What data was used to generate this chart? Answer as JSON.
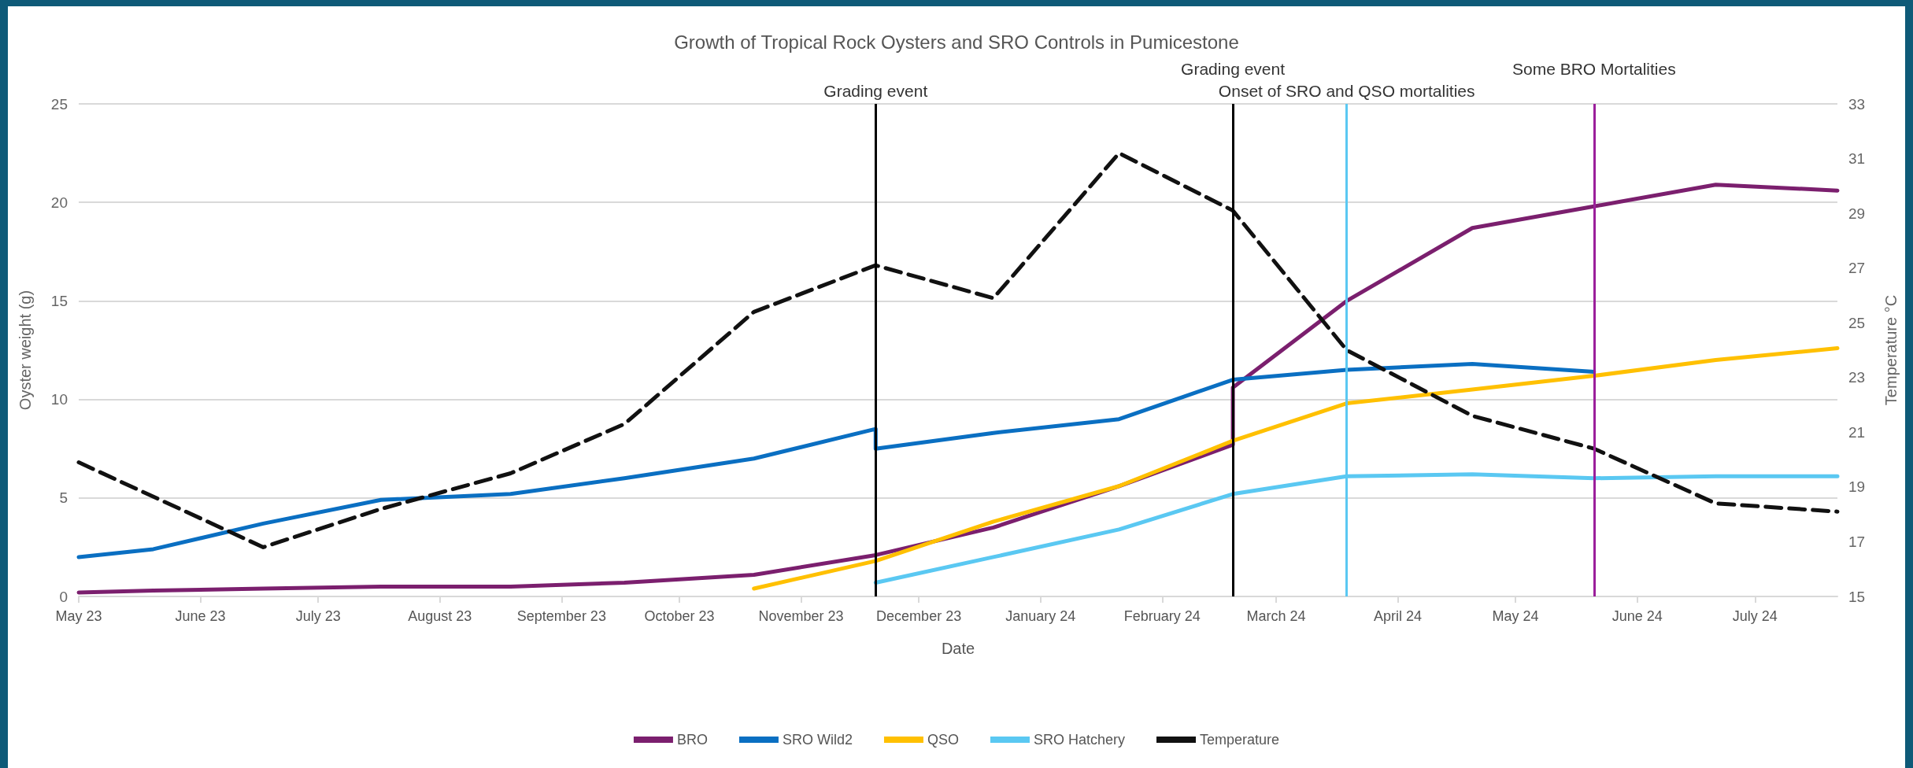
{
  "chart_data": {
    "type": "line",
    "title": "Growth of Tropical Rock Oysters and SRO Controls in Pumicestone",
    "xlabel": "Date",
    "ylabel": "Oyster weight (g)",
    "y2label": "Temperature °C",
    "xlim": [
      "2023-05-01",
      "2024-07-22"
    ],
    "xticks": [
      {
        "value": "2023-05-01",
        "label": "May 23"
      },
      {
        "value": "2023-06-01",
        "label": "June 23"
      },
      {
        "value": "2023-07-01",
        "label": "July 23"
      },
      {
        "value": "2023-08-01",
        "label": "August 23"
      },
      {
        "value": "2023-09-01",
        "label": "September 23"
      },
      {
        "value": "2023-10-01",
        "label": "October 23"
      },
      {
        "value": "2023-11-01",
        "label": "November 23"
      },
      {
        "value": "2023-12-01",
        "label": "December 23"
      },
      {
        "value": "2024-01-01",
        "label": "January 24"
      },
      {
        "value": "2024-02-01",
        "label": "February 24"
      },
      {
        "value": "2024-03-01",
        "label": "March 24"
      },
      {
        "value": "2024-04-01",
        "label": "April 24"
      },
      {
        "value": "2024-05-01",
        "label": "May 24"
      },
      {
        "value": "2024-06-01",
        "label": "June 24"
      },
      {
        "value": "2024-07-01",
        "label": "July 24"
      }
    ],
    "ylim": [
      0,
      25
    ],
    "yticks": [
      0,
      5,
      10,
      15,
      20,
      25
    ],
    "y2lim": [
      15,
      33
    ],
    "y2ticks": [
      15,
      17,
      19,
      21,
      23,
      25,
      27,
      29,
      31,
      33
    ],
    "grid": "y",
    "legend": "bottom",
    "marker": "none",
    "series": [
      {
        "name": "BRO",
        "color": "#7b1f6e",
        "line_style": "solid",
        "x": [
          "2023-05-01",
          "2023-05-20",
          "2023-06-17",
          "2023-07-17",
          "2023-08-19",
          "2023-09-17",
          "2023-10-20",
          "2023-11-20",
          "2023-12-20",
          "2024-01-21",
          "2024-02-19",
          "2024-02-19",
          "2024-03-19",
          "2024-04-20",
          "2024-05-21",
          "2024-06-21",
          "2024-07-22"
        ],
        "values": [
          0.2,
          0.3,
          0.4,
          0.5,
          0.5,
          0.7,
          1.1,
          2.1,
          3.5,
          5.6,
          7.7,
          10.6,
          15.0,
          18.7,
          19.8,
          20.9,
          20.6
        ]
      },
      {
        "name": "SRO Wild2",
        "color": "#0a6fc2",
        "line_style": "solid",
        "x": [
          "2023-05-01",
          "2023-05-20",
          "2023-06-17",
          "2023-07-17",
          "2023-08-19",
          "2023-09-17",
          "2023-10-20",
          "2023-11-20",
          "2023-11-20",
          "2023-12-20",
          "2024-01-21",
          "2024-02-19",
          "2024-03-19",
          "2024-04-20",
          "2024-05-21"
        ],
        "values": [
          2.0,
          2.4,
          3.7,
          4.9,
          5.2,
          6.0,
          7.0,
          8.5,
          7.5,
          8.3,
          9.0,
          11.0,
          11.5,
          11.8,
          11.4
        ]
      },
      {
        "name": "QSO",
        "color": "#ffc000",
        "line_style": "solid",
        "x": [
          "2023-10-20",
          "2023-11-20",
          "2023-12-20",
          "2024-01-21",
          "2024-02-19",
          "2024-03-19",
          "2024-04-20",
          "2024-05-21",
          "2024-06-21",
          "2024-07-22"
        ],
        "values": [
          0.4,
          1.8,
          3.8,
          5.6,
          7.9,
          9.8,
          10.5,
          11.2,
          12.0,
          12.6
        ]
      },
      {
        "name": "SRO Hatchery",
        "color": "#5ac8f2",
        "line_style": "solid",
        "x": [
          "2023-11-20",
          "2023-12-20",
          "2024-01-21",
          "2024-02-19",
          "2024-03-19",
          "2024-04-20",
          "2024-05-21",
          "2024-06-21",
          "2024-07-22"
        ],
        "values": [
          0.7,
          2.0,
          3.4,
          5.2,
          6.1,
          6.2,
          6.0,
          6.1,
          6.1
        ]
      },
      {
        "name": "Temperature",
        "color": "#111111",
        "line_style": "dashed",
        "axis": "y2",
        "x": [
          "2023-05-01",
          "2023-06-17",
          "2023-07-17",
          "2023-08-19",
          "2023-09-17",
          "2023-10-20",
          "2023-11-20",
          "2023-12-20",
          "2024-01-21",
          "2024-02-19",
          "2024-03-19",
          "2024-04-20",
          "2024-05-21",
          "2024-06-21",
          "2024-07-22"
        ],
        "values": [
          19.9,
          16.8,
          18.2,
          19.5,
          21.3,
          25.4,
          27.1,
          25.9,
          31.2,
          29.1,
          24.0,
          21.6,
          20.4,
          18.4,
          18.1
        ]
      }
    ],
    "ref_lines": [
      {
        "axis": "x",
        "value": "2023-11-20",
        "label": "Grading event",
        "color": "#000000"
      },
      {
        "axis": "x",
        "value": "2024-02-19",
        "label": "Grading event",
        "color": "#000000"
      },
      {
        "axis": "x",
        "value": "2024-03-19",
        "label": "Onset of SRO and QSO mortalities",
        "color": "#5ac8f2"
      },
      {
        "axis": "x",
        "value": "2024-05-21",
        "label": "Some BRO Mortalities",
        "color": "#9b1f9b"
      }
    ]
  }
}
